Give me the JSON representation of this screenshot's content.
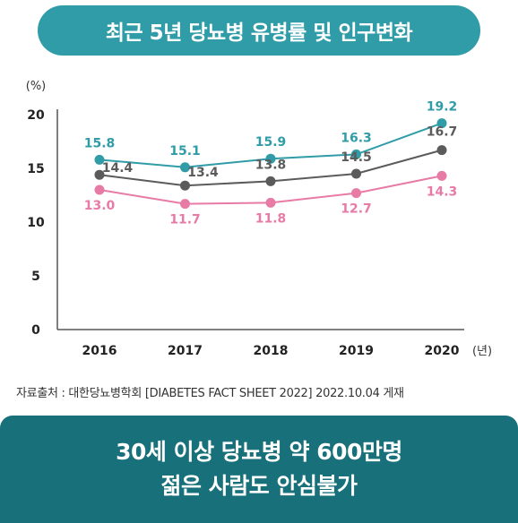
{
  "title": "최근 5년 당뇨병 유병률 및 인구변화",
  "chart_data": {
    "type": "line",
    "x": [
      "2016",
      "2017",
      "2018",
      "2019",
      "2020"
    ],
    "y_unit": "(%)",
    "x_unit": "(년)",
    "y_ticks": [
      0,
      5,
      10,
      15,
      20
    ],
    "ylim": [
      0,
      20
    ],
    "grid": false,
    "legend": "none",
    "series": [
      {
        "values": [
          15.8,
          15.1,
          15.9,
          16.3,
          19.2
        ],
        "labels": [
          "15.8",
          "15.1",
          "15.9",
          "16.3",
          "19.2"
        ],
        "color": "#2f9ca7"
      },
      {
        "values": [
          14.4,
          13.4,
          13.8,
          14.5,
          16.7
        ],
        "labels": [
          "14.4",
          "13.4",
          "13.8",
          "14.5",
          "16.7"
        ],
        "color": "#5b5b5b"
      },
      {
        "values": [
          13.0,
          11.7,
          11.8,
          12.7,
          14.3
        ],
        "labels": [
          "13.0",
          "11.7",
          "11.8",
          "12.7",
          "14.3"
        ],
        "color": "#e87aa6"
      }
    ]
  },
  "source": "자료출처 : 대한당뇨병학회  [DIABETES FACT SHEET 2022] 2022.10.04 게재",
  "banner": {
    "line1": "30세 이상 당뇨병 약 600만명",
    "line2": "젊은 사람도 안심불가"
  }
}
